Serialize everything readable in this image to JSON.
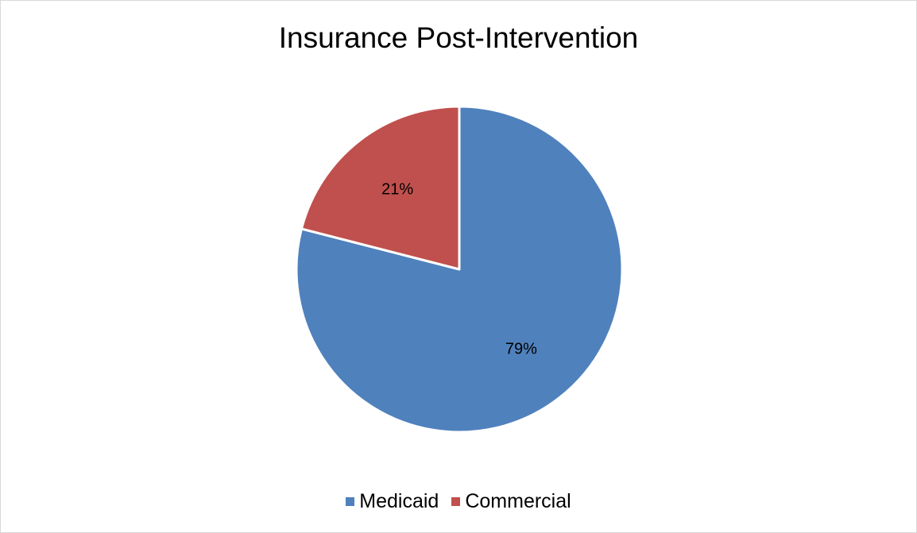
{
  "chart_data": {
    "type": "pie",
    "title": "Insurance Post-Intervention",
    "slices": [
      {
        "name": "Medicaid",
        "value": 79,
        "label": "79%",
        "color": "#4f81bd"
      },
      {
        "name": "Commercial",
        "value": 21,
        "label": "21%",
        "color": "#c0504d"
      }
    ],
    "start_angle_deg": 0,
    "direction": "clockwise",
    "legend_position": "bottom",
    "border_color": "#d9d9d9"
  }
}
